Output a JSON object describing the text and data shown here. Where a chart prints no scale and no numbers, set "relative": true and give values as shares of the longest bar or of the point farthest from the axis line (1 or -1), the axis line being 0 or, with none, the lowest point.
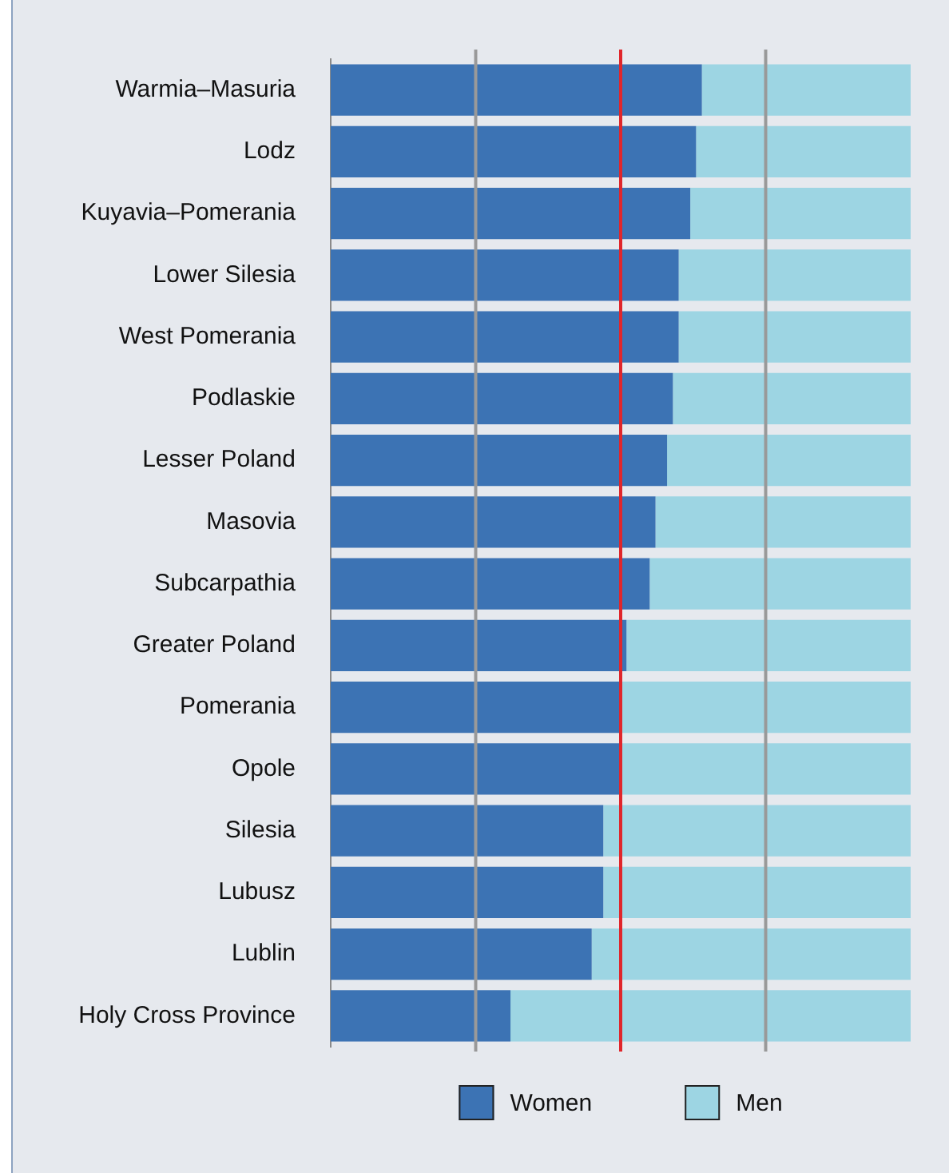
{
  "chart_data": {
    "type": "bar",
    "orientation": "horizontal",
    "stacked": true,
    "relative": true,
    "categories": [
      "Warmia–Masuria",
      "Lodz",
      "Kuyavia–Pomerania",
      "Lower Silesia",
      "West Pomerania",
      "Podlaskie",
      "Lesser Poland",
      "Masovia",
      "Subcarpathia",
      "Greater Poland",
      "Pomerania",
      "Opole",
      "Silesia",
      "Lubusz",
      "Lublin",
      "Holy Cross Province"
    ],
    "series": [
      {
        "name": "Women",
        "color": "#3c73b4",
        "values": [
          0.64,
          0.63,
          0.62,
          0.6,
          0.6,
          0.59,
          0.58,
          0.56,
          0.55,
          0.51,
          0.5,
          0.5,
          0.47,
          0.47,
          0.45,
          0.31
        ]
      },
      {
        "name": "Men",
        "color": "#9dd5e3",
        "values": [
          0.36,
          0.37,
          0.38,
          0.4,
          0.4,
          0.41,
          0.42,
          0.44,
          0.45,
          0.49,
          0.5,
          0.5,
          0.53,
          0.53,
          0.55,
          0.69
        ]
      }
    ],
    "ref_lines": [
      {
        "axis": "x",
        "value": 0.25,
        "color": "#999999"
      },
      {
        "axis": "x",
        "value": 0.5,
        "color": "#e0262b"
      },
      {
        "axis": "x",
        "value": 0.75,
        "color": "#999999"
      }
    ],
    "legend": "bottom"
  }
}
